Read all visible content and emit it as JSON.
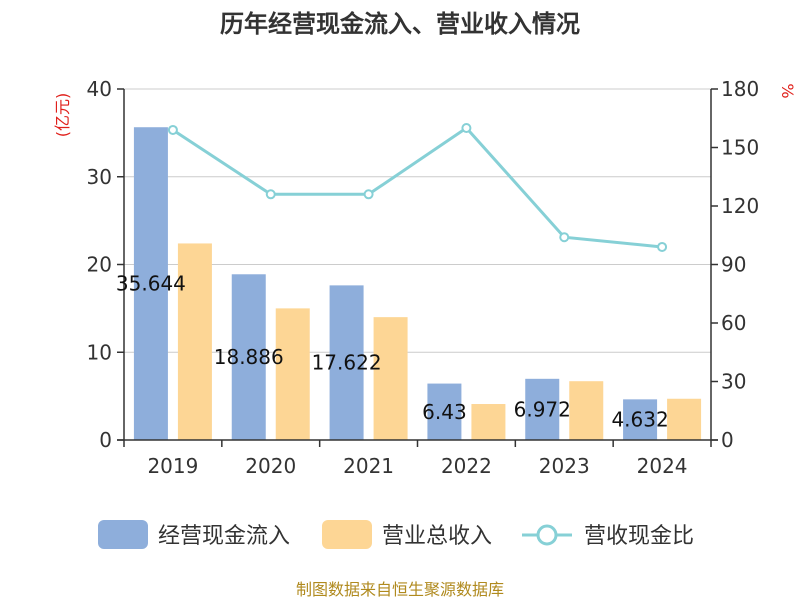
{
  "chart_data": {
    "type": "bar",
    "title": "历年经营现金流入、营业收入情况",
    "categories": [
      "2019",
      "2020",
      "2021",
      "2022",
      "2023",
      "2024"
    ],
    "series": [
      {
        "name": "经营现金流入",
        "kind": "bar",
        "axis": "left",
        "color": "#8eaedb",
        "values": [
          35.644,
          18.886,
          17.622,
          6.43,
          6.972,
          4.632
        ],
        "labels": [
          "35.644",
          "18.886",
          "17.622",
          "6.43",
          "6.972",
          "4.632"
        ]
      },
      {
        "name": "营业总收入",
        "kind": "bar",
        "axis": "left",
        "color": "#fdd695",
        "values": [
          22.4,
          15.0,
          14.0,
          4.1,
          6.7,
          4.7
        ]
      },
      {
        "name": "营收现金比",
        "kind": "line",
        "axis": "right",
        "color": "#86d0d6",
        "values": [
          159,
          126,
          126,
          160,
          104,
          99
        ]
      }
    ],
    "yleft": {
      "unit": "(亿元)",
      "ylim": [
        0,
        40
      ],
      "ticks": [
        "0",
        "10",
        "20",
        "30",
        "40"
      ]
    },
    "yright": {
      "unit": "%",
      "ylim": [
        0,
        180
      ],
      "ticks": [
        "0",
        "30",
        "60",
        "90",
        "120",
        "150",
        "180"
      ]
    },
    "grid": true,
    "legend": "bottom"
  },
  "footer": {
    "source": "制图数据来自恒生聚源数据库"
  }
}
